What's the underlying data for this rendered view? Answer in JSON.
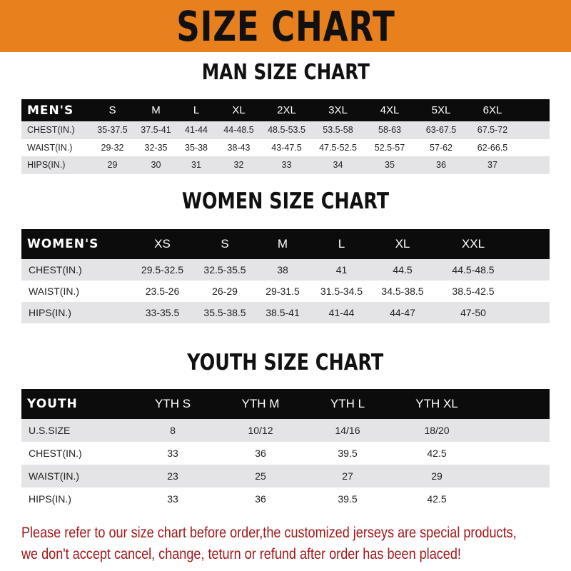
{
  "banner_title": "SIZE CHART",
  "colors": {
    "banner": "#e8801e",
    "header_row": "#0c0c0c",
    "shaded_row": "#e4e4e6",
    "notice_text": "#a3161a"
  },
  "men": {
    "title": "MAN SIZE CHART",
    "header": [
      "MEN'S",
      "S",
      "M",
      "L",
      "XL",
      "2XL",
      "3XL",
      "4XL",
      "5XL",
      "6XL"
    ],
    "rows": [
      [
        "CHEST(IN.)",
        "35-37.5",
        "37.5-41",
        "41-44",
        "44-48.5",
        "48.5-53.5",
        "53.5-58",
        "58-63",
        "63-67.5",
        "67.5-72"
      ],
      [
        "WAIST(IN.)",
        "29-32",
        "32-35",
        "35-38",
        "38-43",
        "43-47.5",
        "47.5-52.5",
        "52.5-57",
        "57-62",
        "62-66.5"
      ],
      [
        "HIPS(IN.)",
        "29",
        "30",
        "31",
        "32",
        "33",
        "34",
        "35",
        "36",
        "37"
      ]
    ]
  },
  "women": {
    "title": "WOMEN SIZE CHART",
    "header": [
      "WOMEN'S",
      "XS",
      "S",
      "M",
      "L",
      "XL",
      "XXL"
    ],
    "rows": [
      [
        "CHEST(IN.)",
        "29.5-32.5",
        "32.5-35.5",
        "38",
        "41",
        "44.5",
        "44.5-48.5"
      ],
      [
        "WAIST(IN.)",
        "23.5-26",
        "26-29",
        "29-31.5",
        "31.5-34.5",
        "34.5-38.5",
        "38.5-42.5"
      ],
      [
        "HIPS(IN.)",
        "33-35.5",
        "35.5-38.5",
        "38.5-41",
        "41-44",
        "44-47",
        "47-50"
      ]
    ]
  },
  "youth": {
    "title": "YOUTH SIZE CHART",
    "header": [
      "YOUTH",
      "YTH S",
      "YTH M",
      "YTH L",
      "YTH XL"
    ],
    "rows": [
      [
        "U.S.SIZE",
        "8",
        "10/12",
        "14/16",
        "18/20"
      ],
      [
        "CHEST(IN.)",
        "33",
        "36",
        "39.5",
        "42.5"
      ],
      [
        "WAIST(IN.)",
        "23",
        "25",
        "27",
        "29"
      ],
      [
        "HIPS(IN.)",
        "33",
        "36",
        "39.5",
        "42.5"
      ]
    ]
  },
  "notice": {
    "line1": "Please refer to our size chart before order,the customized jerseys are special products,",
    "line2": "we don't accept cancel, change, teturn or refund after order has been placed!"
  }
}
